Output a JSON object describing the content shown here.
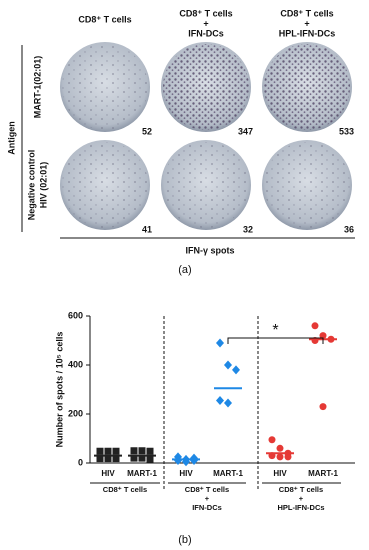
{
  "panel_a": {
    "columns": [
      [
        "CD8⁺ T cells"
      ],
      [
        "CD8⁺ T cells",
        "+",
        "IFN-DCs"
      ],
      [
        "CD8⁺ T cells",
        "+",
        "HPL-IFN-DCs"
      ]
    ],
    "rows": [
      [
        "MART-1(02:01)"
      ],
      [
        "Negative control",
        "HIV (02:01)"
      ]
    ],
    "row_group": "Antigen",
    "counts": [
      [
        52,
        347,
        533
      ],
      [
        41,
        32,
        36
      ]
    ],
    "x_label": "IFN-γ spots",
    "caption": "(a)"
  },
  "chart_data": {
    "type": "strip",
    "ylabel": "Number of spots / 10⁵ cells",
    "categories": [
      "HIV",
      "MART-1",
      "HIV",
      "MART-1",
      "HIV",
      "MART-1"
    ],
    "values": [
      [
        48,
        48,
        48,
        18,
        18,
        18
      ],
      [
        50,
        50,
        48,
        20,
        20,
        15
      ],
      [
        25,
        15,
        10,
        10,
        5,
        20
      ],
      [
        490,
        400,
        380,
        255,
        245
      ],
      [
        95,
        60,
        40,
        30,
        25,
        25
      ],
      [
        560,
        520,
        505,
        500,
        230
      ]
    ],
    "medians": [
      30,
      30,
      15,
      305,
      40,
      505
    ],
    "colors": [
      "#222222",
      "#222222",
      "#1e88e5",
      "#1e88e5",
      "#e53935",
      "#e53935"
    ],
    "markers": [
      "square",
      "square",
      "diamond",
      "diamond",
      "circle",
      "circle"
    ],
    "groups": [
      [
        "CD8⁺ T cells"
      ],
      [
        "CD8⁺ T cells",
        "+",
        "IFN-DCs"
      ],
      [
        "CD8⁺ T cells",
        "+",
        "HPL-IFN-DCs"
      ]
    ],
    "annotation": "*",
    "ylim": [
      0,
      600
    ],
    "yticks": [
      0,
      200,
      400,
      600
    ],
    "caption": "(b)"
  }
}
